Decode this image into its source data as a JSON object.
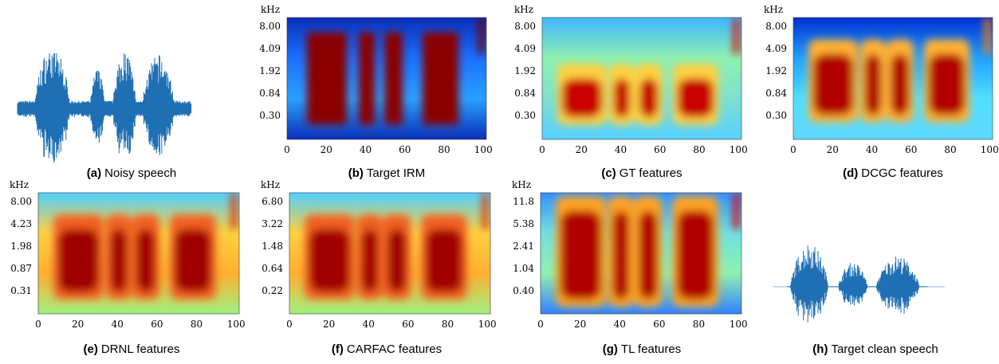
{
  "panels": [
    {
      "label": "(a)",
      "caption": "Noisy speech"
    },
    {
      "label": "(b)",
      "caption": "Target IRM",
      "unit": "kHz",
      "yticks": [
        "8.00",
        "4.09",
        "1.92",
        "0.84",
        "0.30"
      ],
      "xticks": [
        "0",
        "20",
        "40",
        "60",
        "80",
        "100"
      ]
    },
    {
      "label": "(c)",
      "caption": "GT features",
      "unit": "kHz",
      "yticks": [
        "8.00",
        "4.09",
        "1.92",
        "0.84",
        "0.30"
      ],
      "xticks": [
        "0",
        "20",
        "40",
        "60",
        "80",
        "100"
      ]
    },
    {
      "label": "(d)",
      "caption": "DCGC features",
      "unit": "kHz",
      "yticks": [
        "8.00",
        "4.09",
        "1.92",
        "0.84",
        "0.30"
      ],
      "xticks": [
        "0",
        "20",
        "40",
        "60",
        "80",
        "100"
      ]
    },
    {
      "label": "(e)",
      "caption": "DRNL features",
      "unit": "kHz",
      "yticks": [
        "8.00",
        "4.23",
        "1.98",
        "0.87",
        "0.31"
      ],
      "xticks": [
        "0",
        "20",
        "40",
        "60",
        "80",
        "100"
      ]
    },
    {
      "label": "(f)",
      "caption": "CARFAC features",
      "unit": "kHz",
      "yticks": [
        "6.80",
        "3.22",
        "1.48",
        "0.64",
        "0.22"
      ],
      "xticks": [
        "0",
        "20",
        "40",
        "60",
        "80",
        "100"
      ]
    },
    {
      "label": "(g)",
      "caption": "TL features",
      "unit": "kHz",
      "yticks": [
        "11.8",
        "5.38",
        "2.41",
        "1.04",
        "0.40"
      ],
      "xticks": [
        "0",
        "20",
        "40",
        "60",
        "80",
        "100"
      ]
    },
    {
      "label": "(h)",
      "caption": "Target clean speech"
    }
  ]
}
